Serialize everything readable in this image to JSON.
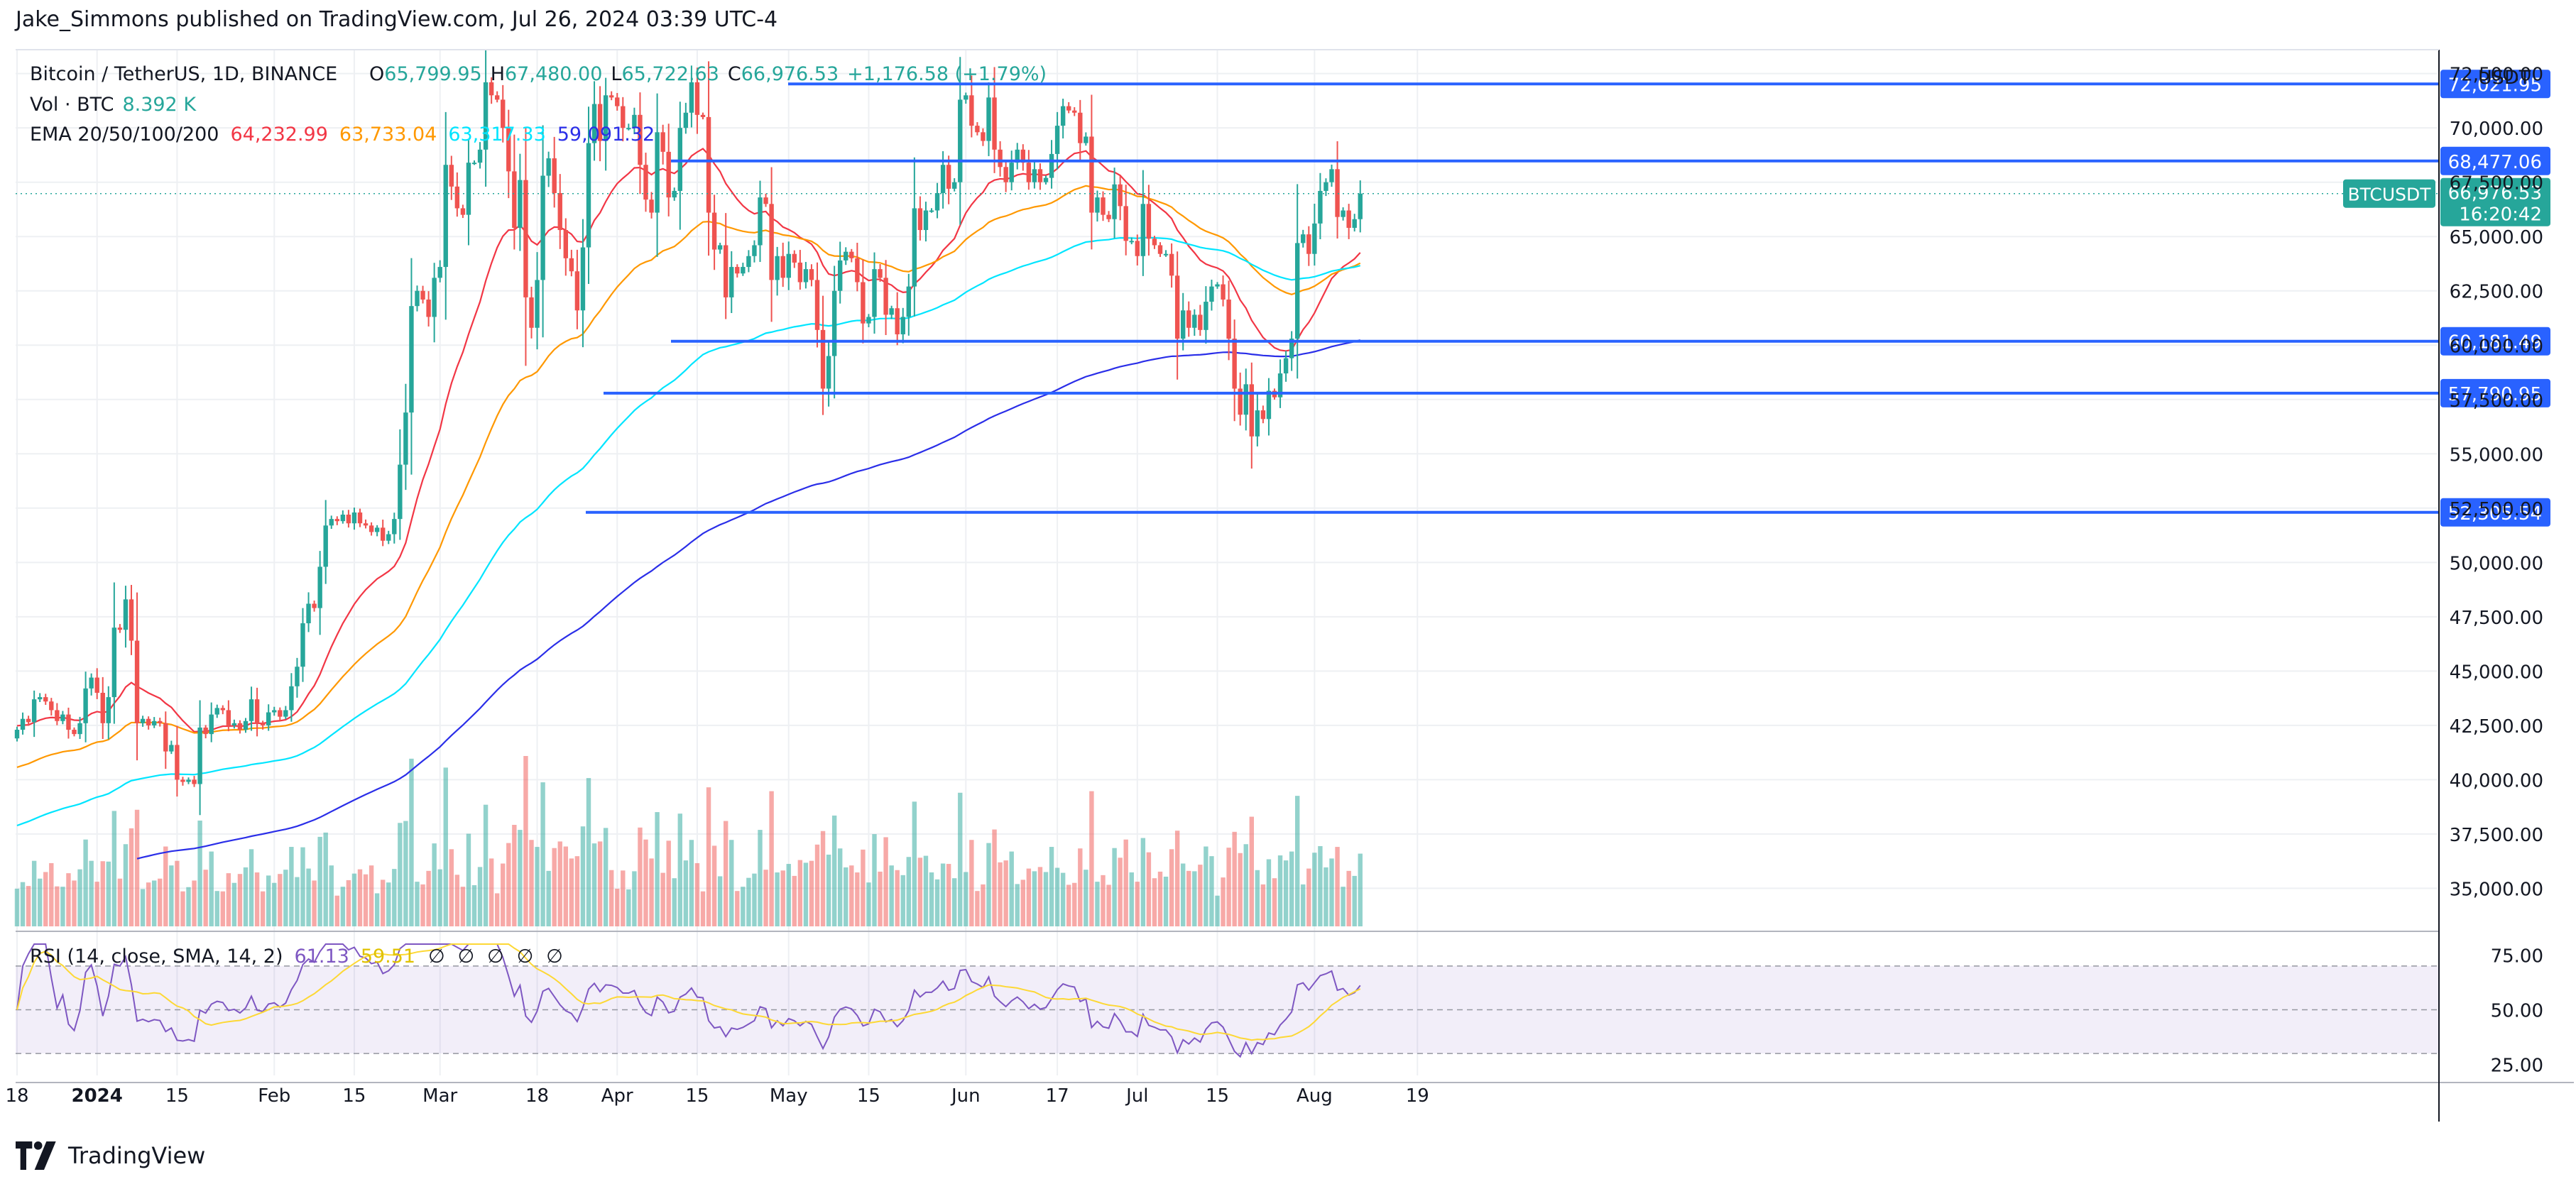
{
  "header": {
    "publisher_text": "Jake_Simmons published on TradingView.com, Jul 26, 2024 03:39 UTC-4"
  },
  "footer": {
    "brand": "TradingView"
  },
  "legend": {
    "symbol": "Bitcoin / TetherUS, 1D, BINANCE",
    "ohlc": [
      {
        "key": "O",
        "value": "65,799.95"
      },
      {
        "key": "H",
        "value": "67,480.00"
      },
      {
        "key": "L",
        "value": "65,722.63"
      },
      {
        "key": "C",
        "value": "66,976.53"
      }
    ],
    "change": "+1,176.58 (+1.79%)",
    "vol_label": "Vol · BTC",
    "vol_value": "8.392 K",
    "ema_label": "EMA 20/50/100/200",
    "ema_values": [
      {
        "value": "64,232.99",
        "color": "#f23645"
      },
      {
        "value": "63,733.04",
        "color": "#ff9800"
      },
      {
        "value": "63,317.33",
        "color": "#00e5ff"
      },
      {
        "value": "59,091.32",
        "color": "#2a2ee8"
      }
    ],
    "rsi_label": "RSI (14, close, SMA, 14, 2)",
    "rsi_value": "61.13",
    "rsi_sma_value": "59.51",
    "rsi_na": [
      "∅",
      "∅",
      "∅",
      "∅",
      "∅"
    ]
  },
  "axis": {
    "currency": "USDT",
    "price_ticks": [
      35000,
      37500,
      40000,
      42500,
      45000,
      47500,
      50000,
      52500,
      55000,
      57500,
      60000,
      62500,
      65000,
      67500,
      70000,
      72500
    ],
    "price_range": [
      33250,
      73600
    ],
    "date_labels": [
      {
        "label": "18",
        "day": 0
      },
      {
        "label": "2024",
        "day": 14
      },
      {
        "label": "15",
        "day": 28
      },
      {
        "label": "Feb",
        "day": 45
      },
      {
        "label": "15",
        "day": 59
      },
      {
        "label": "Mar",
        "day": 74
      },
      {
        "label": "18",
        "day": 91
      },
      {
        "label": "Apr",
        "day": 105
      },
      {
        "label": "15",
        "day": 119
      },
      {
        "label": "May",
        "day": 135
      },
      {
        "label": "15",
        "day": 149
      },
      {
        "label": "Jun",
        "day": 166
      },
      {
        "label": "17",
        "day": 182
      },
      {
        "label": "Jul",
        "day": 196
      },
      {
        "label": "15",
        "day": 210
      },
      {
        "label": "Aug",
        "day": 227
      },
      {
        "label": "19",
        "day": 245
      }
    ],
    "rsi_ticks": [
      25,
      50,
      75
    ],
    "rsi_band": [
      30,
      70
    ]
  },
  "levels": [
    {
      "price": 72021.95,
      "label": "72,021.95"
    },
    {
      "price": 68477.06,
      "label": "68,477.06"
    },
    {
      "price": 60181.49,
      "label": "60,181.49"
    },
    {
      "price": 57790.95,
      "label": "57,790.95"
    },
    {
      "price": 52305.54,
      "label": "52,305.54"
    }
  ],
  "last_price": {
    "symbol": "BTCUSDT",
    "price": 66976.53,
    "label": "66,976.53",
    "countdown": "16:20:42"
  },
  "colors": {
    "up": "#26a69a",
    "down": "#ef5350",
    "level": "#2962ff",
    "grid": "#eef0f3",
    "rsi": "#7e57c2",
    "rsi_sma": "#fdd835"
  },
  "chart_data": {
    "type": "candlestick",
    "title": "Bitcoin / TetherUS, 1D, BINANCE",
    "x_start": "2023-12-18",
    "interval": "1D",
    "price_ylim": [
      33250,
      73600
    ],
    "closes": [
      42300,
      42800,
      42650,
      43700,
      43800,
      43600,
      43200,
      42700,
      43000,
      42300,
      42100,
      42600,
      44200,
      44700,
      44000,
      42600,
      43800,
      47000,
      46900,
      48300,
      46400,
      42600,
      42800,
      42500,
      42700,
      42600,
      41300,
      41600,
      40000,
      39900,
      40000,
      39800,
      42400,
      42100,
      43000,
      43300,
      43200,
      42500,
      42600,
      42300,
      42700,
      43700,
      42600,
      42500,
      43100,
      43200,
      42900,
      43200,
      44300,
      45200,
      47200,
      48100,
      47900,
      49800,
      51700,
      52000,
      51900,
      52200,
      51800,
      52300,
      51800,
      51700,
      51400,
      51600,
      51000,
      51300,
      52000,
      54500,
      56900,
      61800,
      62500,
      62100,
      61300,
      63100,
      63600,
      68300,
      67300,
      66300,
      66000,
      68400,
      68400,
      69000,
      72100,
      71500,
      71300,
      70000,
      68000,
      65400,
      67600,
      62200,
      60800,
      63000,
      67800,
      68600,
      67000,
      65300,
      64000,
      63400,
      61600,
      64500,
      69300,
      71100,
      69400,
      71500,
      71400,
      71000,
      70000,
      70000,
      70600,
      68300,
      66700,
      66100,
      69800,
      68900,
      66800,
      67100,
      70000,
      70700,
      72100,
      70600,
      70500,
      66100,
      64400,
      64600,
      62200,
      63600,
      63300,
      63600,
      64100,
      64600,
      66800,
      66500,
      63000,
      64100,
      63100,
      64200,
      63800,
      62900,
      63500,
      63000,
      60700,
      58000,
      59500,
      62500,
      63900,
      64300,
      64000,
      62900,
      61000,
      61300,
      63500,
      63100,
      61400,
      61700,
      60500,
      61300,
      62700,
      66300,
      65300,
      66200,
      66200,
      67000,
      68300,
      67200,
      67500,
      71300,
      71500,
      70100,
      69800,
      69400,
      71400,
      69000,
      68200,
      67500,
      68400,
      69000,
      68400,
      67500,
      68100,
      67500,
      67700,
      68800,
      70100,
      71000,
      70800,
      70700,
      69300,
      69600,
      66100,
      66800,
      66000,
      65800,
      67400,
      66400,
      64800,
      64800,
      64100,
      66500,
      64900,
      64600,
      64200,
      64200,
      63200,
      60300,
      61600,
      60800,
      61400,
      60700,
      62000,
      62700,
      62800,
      62100,
      60300,
      58000,
      56800,
      58200,
      55800,
      57000,
      56600,
      57900,
      57600,
      58700,
      59400,
      60300,
      64700,
      65100,
      64200,
      65600,
      67100,
      67500,
      68100,
      65900,
      66200,
      65400,
      65800,
      66976
    ]
  }
}
